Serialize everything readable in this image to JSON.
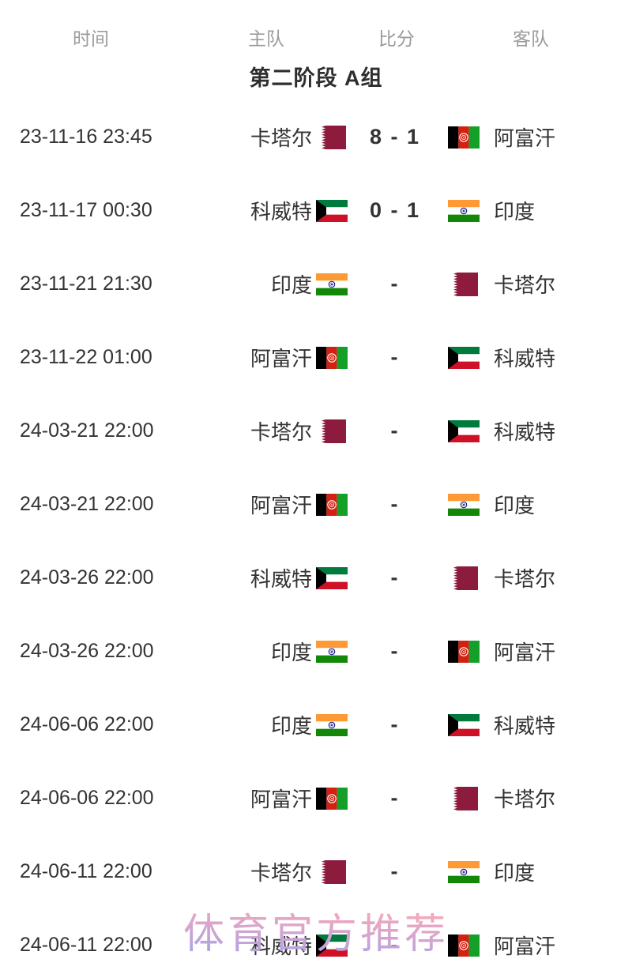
{
  "table": {
    "headers": {
      "time": "时间",
      "home": "主队",
      "score": "比分",
      "away": "客队"
    },
    "group_title": "第二阶段 A组",
    "rows": [
      {
        "time": "23-11-16 23:45",
        "home": {
          "name": "卡塔尔",
          "flag": "qatar"
        },
        "score": "8 - 1",
        "away": {
          "name": "阿富汗",
          "flag": "afghanistan"
        }
      },
      {
        "time": "23-11-17 00:30",
        "home": {
          "name": "科威特",
          "flag": "kuwait"
        },
        "score": "0 - 1",
        "away": {
          "name": "印度",
          "flag": "india"
        }
      },
      {
        "time": "23-11-21 21:30",
        "home": {
          "name": "印度",
          "flag": "india"
        },
        "score": "-",
        "away": {
          "name": "卡塔尔",
          "flag": "qatar"
        }
      },
      {
        "time": "23-11-22 01:00",
        "home": {
          "name": "阿富汗",
          "flag": "afghanistan"
        },
        "score": "-",
        "away": {
          "name": "科威特",
          "flag": "kuwait"
        }
      },
      {
        "time": "24-03-21 22:00",
        "home": {
          "name": "卡塔尔",
          "flag": "qatar"
        },
        "score": "-",
        "away": {
          "name": "科威特",
          "flag": "kuwait"
        }
      },
      {
        "time": "24-03-21 22:00",
        "home": {
          "name": "阿富汗",
          "flag": "afghanistan"
        },
        "score": "-",
        "away": {
          "name": "印度",
          "flag": "india"
        }
      },
      {
        "time": "24-03-26 22:00",
        "home": {
          "name": "科威特",
          "flag": "kuwait"
        },
        "score": "-",
        "away": {
          "name": "卡塔尔",
          "flag": "qatar"
        }
      },
      {
        "time": "24-03-26 22:00",
        "home": {
          "name": "印度",
          "flag": "india"
        },
        "score": "-",
        "away": {
          "name": "阿富汗",
          "flag": "afghanistan"
        }
      },
      {
        "time": "24-06-06 22:00",
        "home": {
          "name": "印度",
          "flag": "india"
        },
        "score": "-",
        "away": {
          "name": "科威特",
          "flag": "kuwait"
        }
      },
      {
        "time": "24-06-06 22:00",
        "home": {
          "name": "阿富汗",
          "flag": "afghanistan"
        },
        "score": "-",
        "away": {
          "name": "卡塔尔",
          "flag": "qatar"
        }
      },
      {
        "time": "24-06-11 22:00",
        "home": {
          "name": "卡塔尔",
          "flag": "qatar"
        },
        "score": "-",
        "away": {
          "name": "印度",
          "flag": "india"
        }
      },
      {
        "time": "24-06-11 22:00",
        "home": {
          "name": "科威特",
          "flag": "kuwait"
        },
        "score": "-",
        "away": {
          "name": "阿富汗",
          "flag": "afghanistan"
        }
      }
    ]
  },
  "watermark": {
    "text": "体育官方推荐",
    "color_top": "#f2a8bc",
    "color_bottom": "#b2a2e4"
  },
  "flags": {
    "qatar": {
      "maroon": "#8d1b3d",
      "white": "#ffffff"
    },
    "kuwait": {
      "green": "#007a3d",
      "white": "#ffffff",
      "red": "#ce1126",
      "black": "#000000"
    },
    "india": {
      "saffron": "#ff9933",
      "white": "#ffffff",
      "green": "#138808",
      "navy": "#000080"
    },
    "afghanistan": {
      "black": "#000000",
      "red": "#d32011",
      "green": "#14a028",
      "white": "#ffffff"
    }
  },
  "colors": {
    "text": "#333333",
    "header_label": "#9b9b9b",
    "title": "#2e2e2e",
    "background": "#ffffff"
  }
}
